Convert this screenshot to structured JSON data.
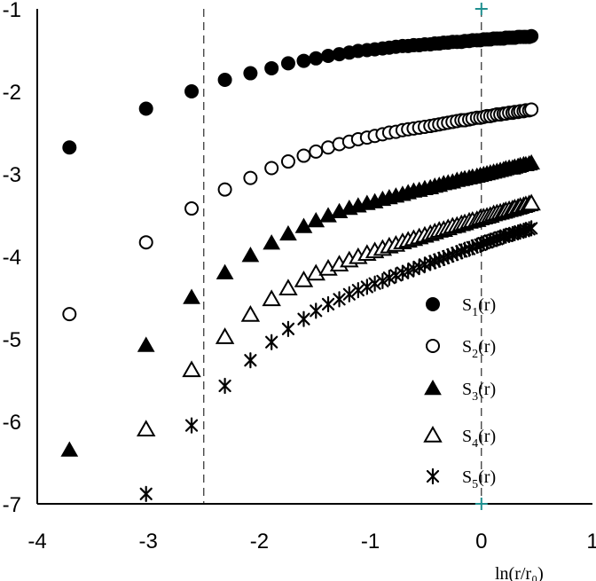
{
  "chart_data": {
    "type": "scatter",
    "xlabel": "ln(r/r₀)",
    "ylabel": "",
    "xlim": [
      -4,
      1
    ],
    "ylim": [
      -7,
      -1
    ],
    "x_ticks": [
      "-4",
      "-3",
      "-2",
      "-1",
      "0",
      "1"
    ],
    "y_ticks": [
      "-1",
      "-2",
      "-3",
      "-4",
      "-5",
      "-6",
      "-7"
    ],
    "grid": false,
    "vertical_dashed_lines": [
      -2.5,
      0
    ],
    "legend_position": "lower-right",
    "series": [
      {
        "name": "S1(r)",
        "label_base": "S",
        "label_sub": "1",
        "label_arg": "(r)",
        "marker": "filled-circle",
        "x": [
          -3.71,
          -3.02,
          -2.61,
          -2.31,
          -2.08,
          -1.89,
          -1.74,
          -1.6,
          -1.49,
          -1.38,
          -1.28,
          -1.19,
          -1.11,
          -1.03,
          -0.96,
          -0.89,
          -0.83,
          -0.77,
          -0.71,
          -0.66,
          -0.61,
          -0.56,
          -0.51,
          -0.46,
          -0.42,
          -0.38,
          -0.34,
          -0.3,
          -0.26,
          -0.22,
          -0.18,
          -0.15,
          -0.11,
          -0.08,
          -0.04,
          -0.01,
          0.02,
          0.05,
          0.08,
          0.11,
          0.14,
          0.17,
          0.2,
          0.22,
          0.25,
          0.28,
          0.3,
          0.33,
          0.35,
          0.38,
          0.4,
          0.43,
          0.45
        ],
        "y": [
          -2.68,
          -2.21,
          -2.0,
          -1.86,
          -1.78,
          -1.72,
          -1.66,
          -1.63,
          -1.6,
          -1.57,
          -1.55,
          -1.53,
          -1.51,
          -1.5,
          -1.49,
          -1.48,
          -1.47,
          -1.46,
          -1.45,
          -1.45,
          -1.44,
          -1.44,
          -1.43,
          -1.43,
          -1.42,
          -1.42,
          -1.41,
          -1.41,
          -1.4,
          -1.4,
          -1.4,
          -1.39,
          -1.39,
          -1.38,
          -1.38,
          -1.38,
          -1.37,
          -1.37,
          -1.37,
          -1.36,
          -1.36,
          -1.36,
          -1.36,
          -1.35,
          -1.35,
          -1.35,
          -1.35,
          -1.34,
          -1.34,
          -1.34,
          -1.34,
          -1.34,
          -1.33
        ]
      },
      {
        "name": "S2(r)",
        "label_base": "S",
        "label_sub": "2",
        "label_arg": "(r)",
        "marker": "open-circle",
        "x": [
          -3.71,
          -3.02,
          -2.61,
          -2.31,
          -2.08,
          -1.89,
          -1.74,
          -1.6,
          -1.49,
          -1.38,
          -1.28,
          -1.19,
          -1.11,
          -1.03,
          -0.96,
          -0.89,
          -0.83,
          -0.77,
          -0.71,
          -0.66,
          -0.61,
          -0.56,
          -0.51,
          -0.46,
          -0.42,
          -0.38,
          -0.34,
          -0.3,
          -0.26,
          -0.22,
          -0.18,
          -0.15,
          -0.11,
          -0.08,
          -0.04,
          -0.01,
          0.02,
          0.05,
          0.08,
          0.11,
          0.14,
          0.17,
          0.2,
          0.22,
          0.25,
          0.28,
          0.3,
          0.33,
          0.35,
          0.38,
          0.4,
          0.43,
          0.45
        ],
        "y": [
          -4.7,
          -3.83,
          -3.42,
          -3.19,
          -3.05,
          -2.93,
          -2.85,
          -2.78,
          -2.73,
          -2.68,
          -2.64,
          -2.61,
          -2.58,
          -2.56,
          -2.54,
          -2.52,
          -2.5,
          -2.49,
          -2.47,
          -2.46,
          -2.45,
          -2.44,
          -2.43,
          -2.42,
          -2.41,
          -2.4,
          -2.39,
          -2.38,
          -2.37,
          -2.36,
          -2.35,
          -2.35,
          -2.34,
          -2.33,
          -2.32,
          -2.32,
          -2.31,
          -2.3,
          -2.3,
          -2.29,
          -2.28,
          -2.28,
          -2.27,
          -2.27,
          -2.26,
          -2.26,
          -2.25,
          -2.25,
          -2.24,
          -2.24,
          -2.23,
          -2.23,
          -2.22
        ]
      },
      {
        "name": "S3(r)",
        "label_base": "S",
        "label_sub": "3",
        "label_arg": "(r)",
        "marker": "filled-triangle",
        "x": [
          -3.71,
          -3.02,
          -2.61,
          -2.31,
          -2.08,
          -1.89,
          -1.74,
          -1.6,
          -1.49,
          -1.38,
          -1.28,
          -1.19,
          -1.11,
          -1.03,
          -0.96,
          -0.89,
          -0.83,
          -0.77,
          -0.71,
          -0.66,
          -0.61,
          -0.56,
          -0.51,
          -0.46,
          -0.42,
          -0.38,
          -0.34,
          -0.3,
          -0.26,
          -0.22,
          -0.18,
          -0.15,
          -0.11,
          -0.08,
          -0.04,
          -0.01,
          0.02,
          0.05,
          0.08,
          0.11,
          0.14,
          0.17,
          0.2,
          0.22,
          0.25,
          0.28,
          0.3,
          0.33,
          0.35,
          0.38,
          0.4,
          0.43,
          0.45
        ],
        "y": [
          -6.35,
          -5.08,
          -4.5,
          -4.2,
          -3.99,
          -3.84,
          -3.73,
          -3.64,
          -3.57,
          -3.51,
          -3.46,
          -3.42,
          -3.39,
          -3.36,
          -3.34,
          -3.31,
          -3.29,
          -3.27,
          -3.25,
          -3.23,
          -3.21,
          -3.2,
          -3.18,
          -3.17,
          -3.15,
          -3.14,
          -3.12,
          -3.11,
          -3.1,
          -3.08,
          -3.07,
          -3.06,
          -3.05,
          -3.04,
          -3.03,
          -3.02,
          -3.01,
          -3.0,
          -2.99,
          -2.98,
          -2.97,
          -2.96,
          -2.95,
          -2.94,
          -2.93,
          -2.93,
          -2.92,
          -2.91,
          -2.9,
          -2.89,
          -2.89,
          -2.88,
          -2.87
        ]
      },
      {
        "name": "S4(r)",
        "label_base": "S",
        "label_sub": "4",
        "label_arg": "(r)",
        "marker": "open-triangle",
        "x": [
          -3.02,
          -2.61,
          -2.31,
          -2.08,
          -1.89,
          -1.74,
          -1.6,
          -1.49,
          -1.38,
          -1.28,
          -1.19,
          -1.11,
          -1.03,
          -0.96,
          -0.89,
          -0.83,
          -0.77,
          -0.71,
          -0.66,
          -0.61,
          -0.56,
          -0.51,
          -0.46,
          -0.42,
          -0.38,
          -0.34,
          -0.3,
          -0.26,
          -0.22,
          -0.18,
          -0.15,
          -0.11,
          -0.08,
          -0.04,
          -0.01,
          0.02,
          0.05,
          0.08,
          0.11,
          0.14,
          0.17,
          0.2,
          0.22,
          0.25,
          0.28,
          0.3,
          0.33,
          0.35,
          0.38,
          0.4,
          0.43,
          0.45
        ],
        "y": [
          -6.1,
          -5.38,
          -4.98,
          -4.71,
          -4.52,
          -4.39,
          -4.29,
          -4.21,
          -4.15,
          -4.1,
          -4.05,
          -4.01,
          -3.97,
          -3.94,
          -3.91,
          -3.88,
          -3.86,
          -3.83,
          -3.81,
          -3.79,
          -3.77,
          -3.75,
          -3.73,
          -3.71,
          -3.69,
          -3.68,
          -3.66,
          -3.64,
          -3.63,
          -3.61,
          -3.6,
          -3.58,
          -3.57,
          -3.56,
          -3.54,
          -3.53,
          -3.52,
          -3.51,
          -3.49,
          -3.48,
          -3.47,
          -3.46,
          -3.45,
          -3.44,
          -3.43,
          -3.42,
          -3.41,
          -3.4,
          -3.39,
          -3.38,
          -3.37,
          -3.36
        ]
      },
      {
        "name": "S5(r)",
        "label_base": "S",
        "label_sub": "5",
        "label_arg": "(r)",
        "marker": "asterisk",
        "x": [
          -3.02,
          -2.61,
          -2.31,
          -2.08,
          -1.89,
          -1.74,
          -1.6,
          -1.49,
          -1.38,
          -1.28,
          -1.19,
          -1.11,
          -1.03,
          -0.96,
          -0.89,
          -0.83,
          -0.77,
          -0.71,
          -0.66,
          -0.61,
          -0.56,
          -0.51,
          -0.46,
          -0.42,
          -0.38,
          -0.34,
          -0.3,
          -0.26,
          -0.22,
          -0.18,
          -0.15,
          -0.11,
          -0.08,
          -0.04,
          -0.01,
          0.02,
          0.05,
          0.08,
          0.11,
          0.14,
          0.17,
          0.2,
          0.22,
          0.25,
          0.28,
          0.3,
          0.33,
          0.35,
          0.38,
          0.4,
          0.43,
          0.45
        ],
        "y": [
          -6.88,
          -6.05,
          -5.57,
          -5.26,
          -5.04,
          -4.88,
          -4.76,
          -4.66,
          -4.58,
          -4.52,
          -4.46,
          -4.41,
          -4.37,
          -4.33,
          -4.3,
          -4.26,
          -4.23,
          -4.2,
          -4.18,
          -4.15,
          -4.13,
          -4.1,
          -4.08,
          -4.06,
          -4.04,
          -4.02,
          -4.0,
          -3.98,
          -3.96,
          -3.94,
          -3.92,
          -3.91,
          -3.89,
          -3.87,
          -3.86,
          -3.84,
          -3.83,
          -3.81,
          -3.8,
          -3.79,
          -3.77,
          -3.76,
          -3.75,
          -3.74,
          -3.73,
          -3.72,
          -3.71,
          -3.7,
          -3.69,
          -3.68,
          -3.67,
          -3.66
        ]
      }
    ]
  }
}
